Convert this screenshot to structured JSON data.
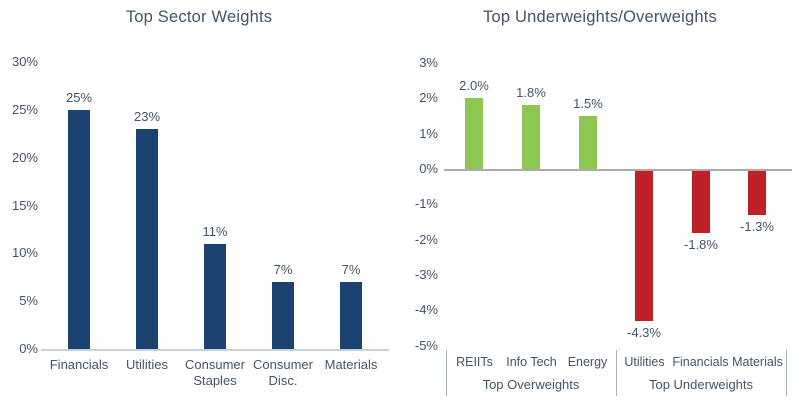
{
  "chart_data": [
    {
      "type": "bar",
      "title": "Top Sector Weights",
      "categories": [
        "Financials",
        "Utilities",
        "Consumer Staples",
        "Consumer Disc.",
        "Materials"
      ],
      "values": [
        25,
        23,
        11,
        7,
        7
      ],
      "value_labels": [
        "25%",
        "23%",
        "11%",
        "7%",
        "7%"
      ],
      "xlabel": "",
      "ylabel": "",
      "ylim": [
        0,
        30
      ],
      "y_ticks": [
        {
          "value": 0,
          "label": "0%"
        },
        {
          "value": 5,
          "label": "5%"
        },
        {
          "value": 10,
          "label": "10%"
        },
        {
          "value": 15,
          "label": "15%"
        },
        {
          "value": 20,
          "label": "20%"
        },
        {
          "value": 25,
          "label": "25%"
        },
        {
          "value": 30,
          "label": "30%"
        }
      ],
      "grid": false,
      "legend": "none",
      "bar_color": "#1B4370",
      "axis_line_color": "#C6D1DC",
      "text_color": "#44546A"
    },
    {
      "type": "bar",
      "title": "Top Underweights/Overweights",
      "categories": [
        "REIITs",
        "Info Tech",
        "Energy",
        "Utilities",
        "Financials",
        "Materials"
      ],
      "values": [
        2.0,
        1.8,
        1.5,
        -4.3,
        -1.8,
        -1.3
      ],
      "value_labels": [
        "2.0%",
        "1.8%",
        "1.5%",
        "-4.3%",
        "-1.8%",
        "-1.3%"
      ],
      "xlabel": "",
      "ylabel": "",
      "ylim": [
        -5,
        3
      ],
      "y_ticks": [
        {
          "value": 3,
          "label": "3%"
        },
        {
          "value": 2,
          "label": "2%"
        },
        {
          "value": 1,
          "label": "1%"
        },
        {
          "value": 0,
          "label": "0%"
        },
        {
          "value": -1,
          "label": "-1%"
        },
        {
          "value": -2,
          "label": "-2%"
        },
        {
          "value": -3,
          "label": "-3%"
        },
        {
          "value": -4,
          "label": "-4%"
        },
        {
          "value": -5,
          "label": "-5%"
        }
      ],
      "groups": [
        {
          "label": "Top Overweights",
          "span": 3
        },
        {
          "label": "Top Underweights",
          "span": 3
        }
      ],
      "grid": false,
      "legend": "none",
      "positive_color": "#8DC751",
      "negative_color": "#C02127",
      "zero_line_color": "#ABABAB",
      "divider_color": "#A8B2BD",
      "text_color": "#44546A"
    }
  ]
}
